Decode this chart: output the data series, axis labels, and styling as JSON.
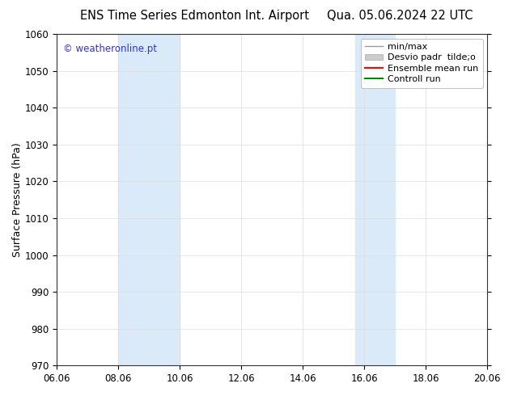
{
  "title_left": "ENS Time Series Edmonton Int. Airport",
  "title_right": "Qua. 05.06.2024 22 UTC",
  "ylabel": "Surface Pressure (hPa)",
  "ylim": [
    970,
    1060
  ],
  "yticks": [
    970,
    980,
    990,
    1000,
    1010,
    1020,
    1030,
    1040,
    1050,
    1060
  ],
  "xtick_labels": [
    "06.06",
    "08.06",
    "10.06",
    "12.06",
    "14.06",
    "16.06",
    "18.06",
    "20.06"
  ],
  "xtick_values": [
    0,
    2,
    4,
    6,
    8,
    10,
    12,
    14
  ],
  "xlim": [
    0,
    14
  ],
  "background_color": "#ffffff",
  "plot_bg_color": "#ffffff",
  "shaded_regions": [
    {
      "xstart": 2.0,
      "xend": 4.0,
      "color": "#daeaf8"
    },
    {
      "xstart": 9.7,
      "xend": 11.0,
      "color": "#daeaf8"
    }
  ],
  "watermark_text": "© weatheronline.pt",
  "watermark_color": "#3333cc",
  "legend_labels": [
    "min/max",
    "Desvio padr  tilde;o",
    "Ensemble mean run",
    "Controll run"
  ],
  "legend_colors": [
    "#999999",
    "#cccccc",
    "#ff0000",
    "#008800"
  ],
  "title_fontsize": 10.5,
  "tick_fontsize": 8.5,
  "ylabel_fontsize": 9,
  "watermark_fontsize": 8.5,
  "legend_fontsize": 8
}
